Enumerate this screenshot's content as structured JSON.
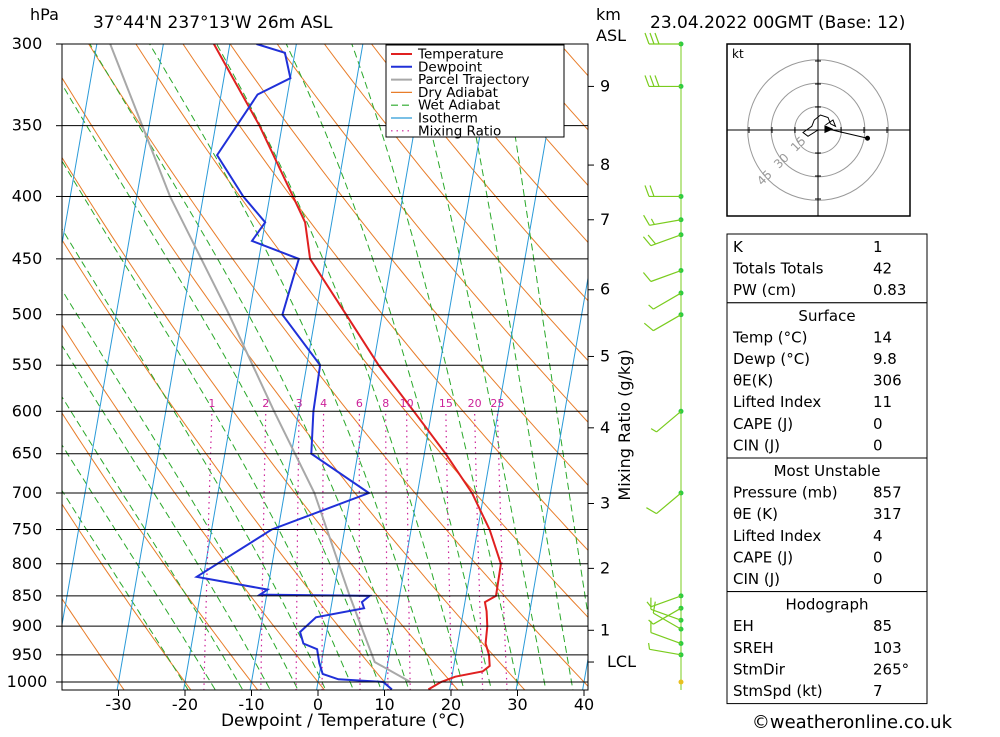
{
  "header": {
    "location": "37°44'N 237°13'W 26m ASL",
    "datetime": "23.04.2022 00GMT (Base: 12)",
    "hpa_unit": "hPa",
    "km_unit": "km",
    "asl_unit": "ASL"
  },
  "footer": {
    "credit": "©weatheronline.co.uk"
  },
  "chart_data": {
    "type": "line",
    "xlabel": "Dewpoint / Temperature (°C)",
    "ylabel_right": "Mixing Ratio (g/kg)",
    "pressure_ticks": [
      300,
      350,
      400,
      450,
      500,
      550,
      600,
      650,
      700,
      750,
      800,
      850,
      900,
      950,
      1000
    ],
    "x_ticks": [
      -30,
      -20,
      -10,
      0,
      10,
      20,
      30,
      40
    ],
    "km_ticks": [
      {
        "label": "9",
        "p": 325
      },
      {
        "label": "8",
        "p": 377
      },
      {
        "label": "7",
        "p": 418
      },
      {
        "label": "6",
        "p": 477
      },
      {
        "label": "5",
        "p": 541
      },
      {
        "label": "4",
        "p": 619
      },
      {
        "label": "3",
        "p": 714
      },
      {
        "label": "2",
        "p": 807
      },
      {
        "label": "1",
        "p": 907
      },
      {
        "label": "LCL",
        "p": 963
      }
    ],
    "mixing_ratio_labels": [
      "1",
      "2",
      "3",
      "4",
      "6",
      "8",
      "10",
      "15",
      "20",
      "25"
    ],
    "legend": [
      "Temperature",
      "Dewpoint",
      "Parcel Trajectory",
      "Dry Adiabat",
      "Wet Adiabat",
      "Isotherm",
      "Mixing Ratio"
    ],
    "colors": {
      "temperature": "#e02020",
      "dewpoint": "#2030d8",
      "parcel": "#a8a8a8",
      "dry_adiabat": "#e87d2a",
      "wet_adiabat": "#2aa82a",
      "isotherm": "#2a9ad8",
      "mixing_ratio": "#cc2299",
      "wind": "#7acc1e"
    },
    "series": [
      {
        "name": "Temperature",
        "points": [
          [
            1014,
            16.8
          ],
          [
            1000,
            18.5
          ],
          [
            990,
            20.5
          ],
          [
            980,
            24.5
          ],
          [
            970,
            25.4
          ],
          [
            950,
            25.0
          ],
          [
            930,
            24.2
          ],
          [
            900,
            24.0
          ],
          [
            875,
            23.5
          ],
          [
            860,
            23.0
          ],
          [
            850,
            24.5
          ],
          [
            800,
            24.4
          ],
          [
            750,
            21.8
          ],
          [
            700,
            18.2
          ],
          [
            650,
            13.2
          ],
          [
            600,
            7.3
          ],
          [
            550,
            0.8
          ],
          [
            500,
            -5.4
          ],
          [
            450,
            -12.3
          ],
          [
            420,
            -14.0
          ],
          [
            400,
            -16.5
          ],
          [
            350,
            -23.4
          ],
          [
            300,
            -32.4
          ]
        ]
      },
      {
        "name": "Dewpoint",
        "points": [
          [
            1014,
            11.3
          ],
          [
            1000,
            9.8
          ],
          [
            995,
            3.0
          ],
          [
            985,
            0.5
          ],
          [
            965,
            -0.3
          ],
          [
            940,
            -1.0
          ],
          [
            930,
            -3.2
          ],
          [
            910,
            -4.0
          ],
          [
            885,
            -2.0
          ],
          [
            870,
            5.0
          ],
          [
            860,
            4.5
          ],
          [
            850,
            5.5
          ],
          [
            848,
            -11.0
          ],
          [
            840,
            -10.0
          ],
          [
            820,
            -21.0
          ],
          [
            750,
            -11.0
          ],
          [
            700,
            2.7
          ],
          [
            650,
            -7.0
          ],
          [
            600,
            -7.8
          ],
          [
            550,
            -8.0
          ],
          [
            500,
            -15.0
          ],
          [
            450,
            -14.0
          ],
          [
            435,
            -21.5
          ],
          [
            420,
            -20.0
          ],
          [
            400,
            -24.0
          ],
          [
            370,
            -29.0
          ],
          [
            330,
            -24.5
          ],
          [
            320,
            -20.0
          ],
          [
            305,
            -21.5
          ],
          [
            300,
            -26.0
          ]
        ]
      },
      {
        "name": "Parcel Trajectory",
        "points": [
          [
            1000,
            13.9
          ],
          [
            963,
            8.0
          ],
          [
            850,
            2.5
          ],
          [
            700,
            -5.5
          ],
          [
            600,
            -13.7
          ],
          [
            500,
            -23.0
          ],
          [
            400,
            -35.0
          ],
          [
            300,
            -48.0
          ]
        ]
      }
    ],
    "winds": [
      {
        "p": 300,
        "dir": 270,
        "spd": 30
      },
      {
        "p": 325,
        "dir": 270,
        "spd": 30
      },
      {
        "p": 400,
        "dir": 270,
        "spd": 20
      },
      {
        "p": 418,
        "dir": 260,
        "spd": 15
      },
      {
        "p": 430,
        "dir": 250,
        "spd": 20
      },
      {
        "p": 460,
        "dir": 250,
        "spd": 10
      },
      {
        "p": 480,
        "dir": 240,
        "spd": 5
      },
      {
        "p": 500,
        "dir": 240,
        "spd": 10
      },
      {
        "p": 600,
        "dir": 230,
        "spd": 5
      },
      {
        "p": 700,
        "dir": 230,
        "spd": 10
      },
      {
        "p": 850,
        "dir": 250,
        "spd": 5
      },
      {
        "p": 870,
        "dir": 240,
        "spd": 5
      },
      {
        "p": 890,
        "dir": 290,
        "spd": 10
      },
      {
        "p": 905,
        "dir": 300,
        "spd": 10
      },
      {
        "p": 930,
        "dir": 290,
        "spd": 10
      },
      {
        "p": 950,
        "dir": 280,
        "spd": 5
      },
      {
        "p": 1000,
        "dir": 180,
        "spd": 0
      }
    ],
    "hodograph": {
      "unit": "kt",
      "ring_labels": [
        "15",
        "30",
        "45"
      ],
      "trace": [
        [
          0,
          0
        ],
        [
          -8,
          -5
        ],
        [
          -12,
          -2
        ],
        [
          -5,
          3
        ],
        [
          -3,
          8
        ],
        [
          2,
          12
        ],
        [
          8,
          10
        ],
        [
          10,
          5
        ],
        [
          14,
          3
        ],
        [
          12,
          8
        ],
        [
          6,
          4
        ]
      ],
      "storm_motion": {
        "dir": 265,
        "spd": 7
      },
      "point_marker": [
        18,
        -3
      ]
    }
  },
  "indices": {
    "top": [
      {
        "label": "K",
        "value": "1"
      },
      {
        "label": "Totals Totals",
        "value": "42"
      },
      {
        "label": "PW (cm)",
        "value": "0.83"
      }
    ],
    "surface": {
      "title": "Surface",
      "rows": [
        {
          "label": "Temp (°C)",
          "value": "14"
        },
        {
          "label": "Dewp (°C)",
          "value": "9.8"
        },
        {
          "label": "θE(K)",
          "value": "306"
        },
        {
          "label": "Lifted Index",
          "value": "11"
        },
        {
          "label": "CAPE (J)",
          "value": "0"
        },
        {
          "label": "CIN (J)",
          "value": "0"
        }
      ]
    },
    "most_unstable": {
      "title": "Most Unstable",
      "rows": [
        {
          "label": "Pressure (mb)",
          "value": "857"
        },
        {
          "label": "θE (K)",
          "value": "317"
        },
        {
          "label": "Lifted Index",
          "value": "4"
        },
        {
          "label": "CAPE (J)",
          "value": "0"
        },
        {
          "label": "CIN (J)",
          "value": "0"
        }
      ]
    },
    "hodograph": {
      "title": "Hodograph",
      "rows": [
        {
          "label": "EH",
          "value": "85"
        },
        {
          "label": "SREH",
          "value": "103"
        },
        {
          "label": "StmDir",
          "value": "265°"
        },
        {
          "label": "StmSpd (kt)",
          "value": "7"
        }
      ]
    }
  }
}
